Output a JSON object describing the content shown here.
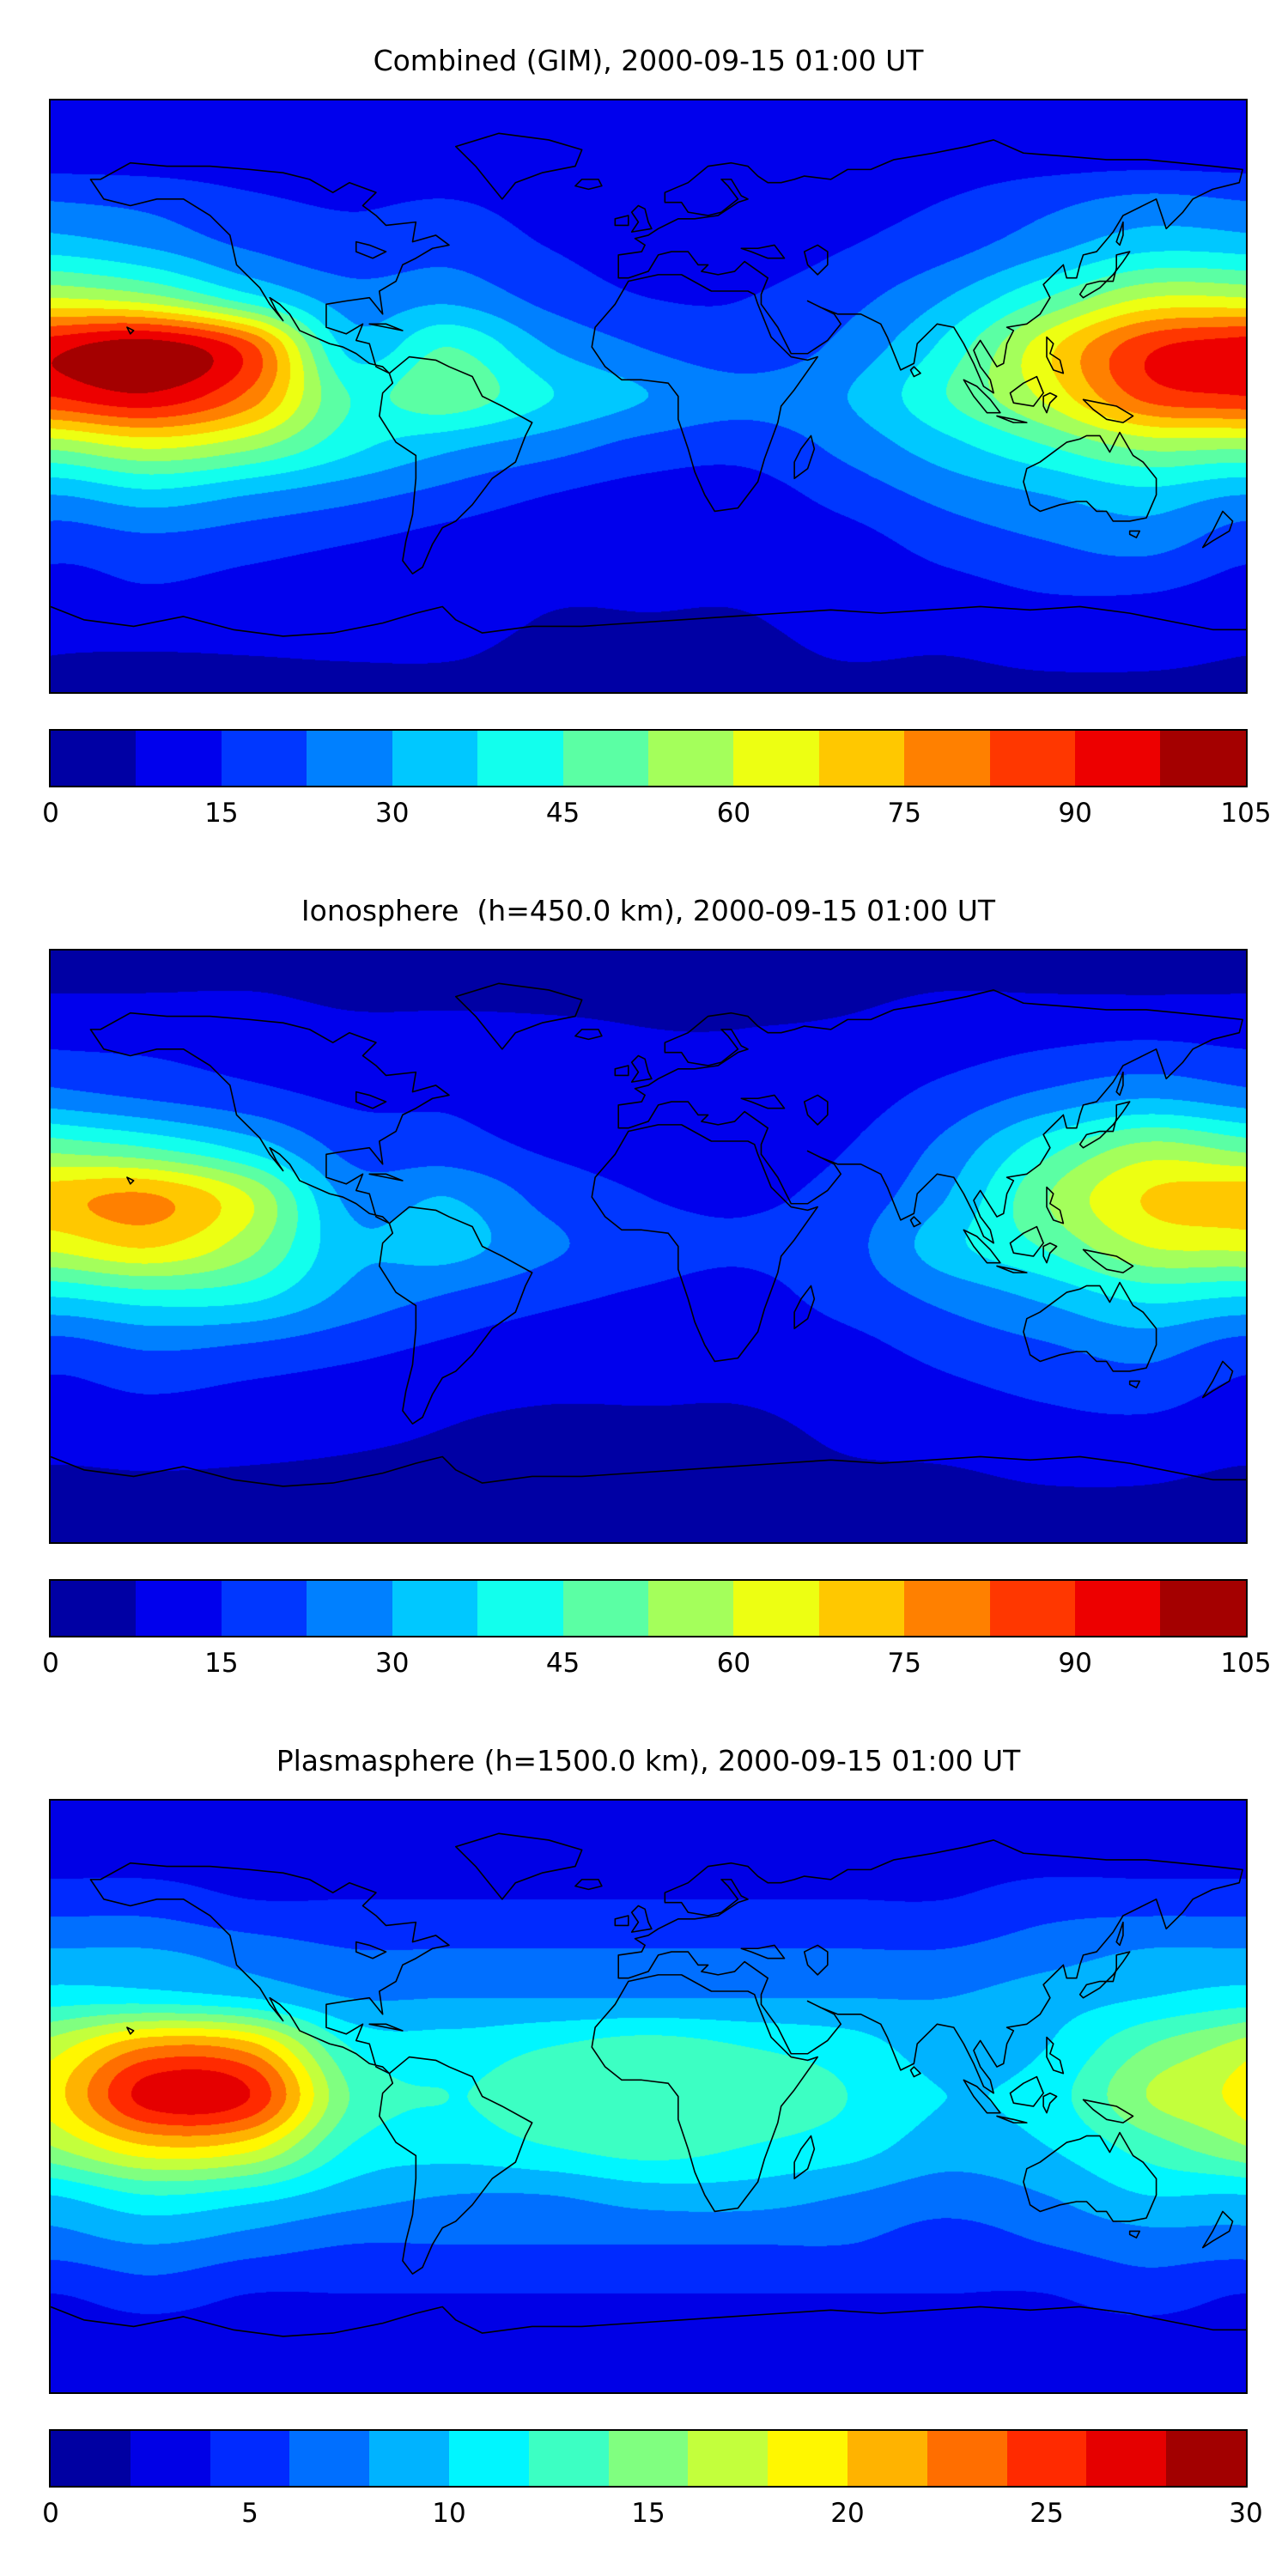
{
  "colors": {
    "background": "#ffffff",
    "coastline": "#000000",
    "text": "#000000",
    "colormap_name": "jet"
  },
  "chart_data": [
    {
      "type": "heatmap",
      "title": "Combined (GIM), 2000-09-15 01:00 UT",
      "geometry": "global equirectangular map, x: lon -180..180, y: lat 90..-90, filled contours with coastline overlay",
      "colormap": "jet",
      "vmin": 0,
      "vmax": 105,
      "n_levels": 14,
      "colorbar_ticks": [
        0,
        15,
        30,
        45,
        60,
        75,
        90,
        105
      ],
      "lon_grid": [
        -180,
        -150,
        -120,
        -90,
        -60,
        -30,
        0,
        30,
        60,
        90,
        120,
        150,
        180
      ],
      "lat_grid": [
        90,
        75,
        60,
        45,
        30,
        15,
        0,
        -15,
        -30,
        -45,
        -60,
        -75,
        -90
      ],
      "values": [
        [
          8,
          8,
          8,
          8,
          8,
          8,
          8,
          8,
          8,
          8,
          8,
          8,
          8
        ],
        [
          10,
          10,
          10,
          9,
          9,
          9,
          9,
          9,
          9,
          10,
          10,
          10,
          10
        ],
        [
          22,
          20,
          16,
          14,
          15,
          12,
          10,
          10,
          12,
          15,
          20,
          24,
          22
        ],
        [
          35,
          30,
          22,
          18,
          20,
          15,
          12,
          12,
          15,
          20,
          28,
          36,
          35
        ],
        [
          60,
          55,
          40,
          26,
          28,
          20,
          15,
          15,
          20,
          30,
          45,
          60,
          60
        ],
        [
          95,
          102,
          85,
          35,
          45,
          30,
          22,
          18,
          25,
          40,
          65,
          88,
          95
        ],
        [
          90,
          96,
          80,
          45,
          50,
          38,
          30,
          25,
          30,
          45,
          62,
          85,
          90
        ],
        [
          55,
          62,
          55,
          40,
          32,
          26,
          20,
          18,
          25,
          35,
          45,
          55,
          55
        ],
        [
          30,
          35,
          30,
          25,
          20,
          15,
          12,
          12,
          18,
          25,
          30,
          35,
          30
        ],
        [
          18,
          20,
          18,
          15,
          12,
          10,
          10,
          10,
          12,
          18,
          22,
          25,
          18
        ],
        [
          12,
          14,
          12,
          10,
          10,
          8,
          8,
          8,
          10,
          12,
          15,
          15,
          12
        ],
        [
          8,
          8,
          8,
          8,
          8,
          7,
          7,
          7,
          8,
          8,
          9,
          9,
          8
        ],
        [
          7,
          7,
          7,
          7,
          7,
          7,
          7,
          7,
          7,
          7,
          7,
          7,
          7
        ]
      ]
    },
    {
      "type": "heatmap",
      "title": "Ionosphere  (h=450.0 km), 2000-09-15 01:00 UT",
      "geometry": "global equirectangular map, x: lon -180..180, y: lat 90..-90, filled contours with coastline overlay",
      "colormap": "jet",
      "vmin": 0,
      "vmax": 105,
      "n_levels": 14,
      "colorbar_ticks": [
        0,
        15,
        30,
        45,
        60,
        75,
        90,
        105
      ],
      "lon_grid": [
        -180,
        -150,
        -120,
        -90,
        -60,
        -30,
        0,
        30,
        60,
        90,
        120,
        150,
        180
      ],
      "lat_grid": [
        90,
        75,
        60,
        45,
        30,
        15,
        0,
        -15,
        -30,
        -45,
        -60,
        -75,
        -90
      ],
      "values": [
        [
          6,
          6,
          6,
          6,
          6,
          6,
          6,
          6,
          6,
          6,
          6,
          6,
          6
        ],
        [
          8,
          8,
          8,
          7,
          7,
          7,
          7,
          7,
          7,
          8,
          8,
          8,
          8
        ],
        [
          15,
          14,
          12,
          10,
          10,
          9,
          8,
          8,
          9,
          12,
          15,
          17,
          15
        ],
        [
          26,
          22,
          18,
          14,
          14,
          12,
          10,
          10,
          12,
          18,
          25,
          30,
          26
        ],
        [
          50,
          45,
          35,
          20,
          18,
          14,
          12,
          12,
          15,
          25,
          42,
          55,
          50
        ],
        [
          72,
          76,
          60,
          28,
          30,
          20,
          15,
          14,
          18,
          30,
          52,
          68,
          72
        ],
        [
          62,
          68,
          55,
          32,
          33,
          24,
          18,
          16,
          20,
          35,
          46,
          60,
          62
        ],
        [
          38,
          42,
          40,
          28,
          22,
          17,
          14,
          13,
          18,
          25,
          32,
          40,
          38
        ],
        [
          20,
          24,
          22,
          18,
          14,
          11,
          10,
          10,
          13,
          18,
          22,
          26,
          20
        ],
        [
          13,
          15,
          13,
          11,
          9,
          8,
          8,
          8,
          10,
          13,
          16,
          18,
          13
        ],
        [
          9,
          10,
          9,
          8,
          7,
          6,
          6,
          6,
          8,
          9,
          11,
          11,
          9
        ],
        [
          6,
          6,
          6,
          6,
          6,
          5,
          5,
          5,
          6,
          6,
          7,
          7,
          6
        ],
        [
          5,
          5,
          5,
          5,
          5,
          5,
          5,
          5,
          5,
          5,
          5,
          5,
          5
        ]
      ]
    },
    {
      "type": "heatmap",
      "title": "Plasmasphere (h=1500.0 km), 2000-09-15 01:00 UT",
      "geometry": "global equirectangular map, x: lon -180..180, y: lat 90..-90, filled contours with coastline overlay",
      "colormap": "jet",
      "vmin": 0,
      "vmax": 30,
      "n_levels": 15,
      "colorbar_ticks": [
        0,
        5,
        10,
        15,
        20,
        25,
        30
      ],
      "lon_grid": [
        -180,
        -150,
        -120,
        -90,
        -60,
        -30,
        0,
        30,
        60,
        90,
        120,
        150,
        180
      ],
      "lat_grid": [
        90,
        75,
        60,
        45,
        30,
        15,
        0,
        -15,
        -30,
        -45,
        -60,
        -75,
        -90
      ],
      "values": [
        [
          3,
          3,
          3,
          3,
          3,
          3,
          3,
          3,
          3,
          3,
          3,
          3,
          3
        ],
        [
          3,
          3,
          3,
          3,
          3,
          3,
          3,
          3,
          3,
          3,
          3,
          3,
          3
        ],
        [
          5,
          5,
          4,
          4,
          4,
          4,
          4,
          4,
          4,
          4,
          5,
          5,
          5
        ],
        [
          8,
          8,
          7,
          6,
          6,
          6,
          6,
          6,
          6,
          6,
          7,
          8,
          8
        ],
        [
          11,
          11,
          10,
          8,
          8,
          8,
          8,
          8,
          8,
          8,
          9,
          10,
          11
        ],
        [
          17,
          22,
          21,
          12,
          11,
          12,
          13,
          12,
          11,
          9,
          10,
          14,
          17
        ],
        [
          19,
          27,
          26,
          14,
          12,
          13,
          14,
          13,
          12,
          10,
          11,
          16,
          19
        ],
        [
          16,
          20,
          19,
          12,
          11,
          12,
          13,
          12,
          11,
          9,
          10,
          13,
          16
        ],
        [
          10,
          12,
          11,
          9,
          8,
          8,
          9,
          9,
          8,
          7,
          8,
          10,
          10
        ],
        [
          7,
          8,
          7,
          6,
          6,
          6,
          6,
          6,
          6,
          5,
          6,
          7,
          7
        ],
        [
          4,
          5,
          4,
          4,
          4,
          4,
          4,
          4,
          4,
          4,
          4,
          5,
          4
        ],
        [
          3,
          3,
          3,
          3,
          3,
          3,
          3,
          3,
          3,
          3,
          3,
          3,
          3
        ],
        [
          3,
          3,
          3,
          3,
          3,
          3,
          3,
          3,
          3,
          3,
          3,
          3,
          3
        ]
      ]
    }
  ]
}
